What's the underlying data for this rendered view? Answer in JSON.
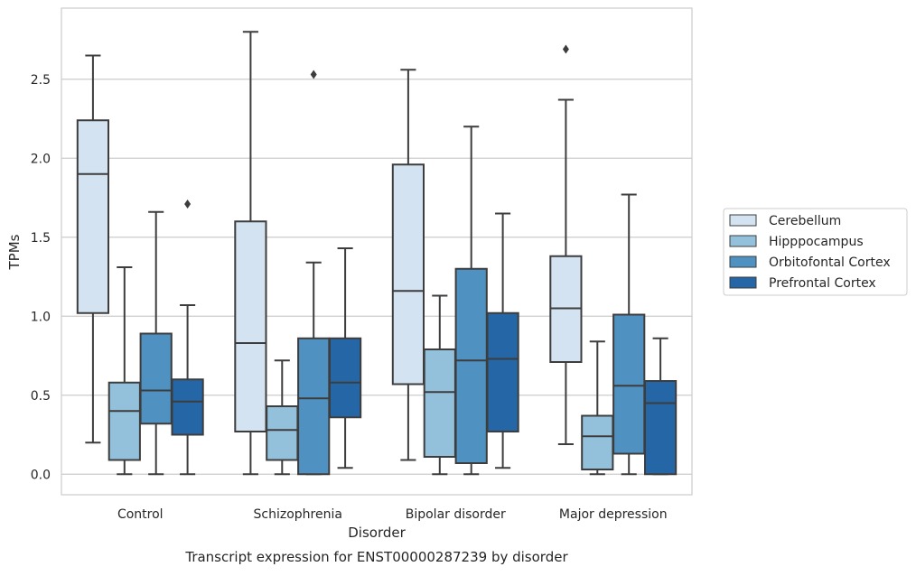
{
  "chart_data": {
    "type": "box",
    "caption": "Transcript expression for ENST00000287239 by disorder",
    "xlabel": "Disorder",
    "ylabel": "TPMs",
    "ylim": [
      -0.13,
      2.95
    ],
    "yticks": [
      0.0,
      0.5,
      1.0,
      1.5,
      2.0,
      2.5
    ],
    "ytick_labels": [
      "0.0",
      "0.5",
      "1.0",
      "1.5",
      "2.0",
      "2.5"
    ],
    "grid": "horizontal",
    "legend_position": "right",
    "categories": [
      "Control",
      "Schizophrenia",
      "Bipolar disorder",
      "Major depression"
    ],
    "series": [
      {
        "name": "Cerebellum",
        "color": "#d3e3f2",
        "boxes": [
          {
            "whisker_low": 0.2,
            "q1": 1.02,
            "median": 1.9,
            "q3": 2.24,
            "whisker_high": 2.65,
            "outliers": []
          },
          {
            "whisker_low": 0.0,
            "q1": 0.27,
            "median": 0.83,
            "q3": 1.6,
            "whisker_high": 2.8,
            "outliers": []
          },
          {
            "whisker_low": 0.09,
            "q1": 0.57,
            "median": 1.16,
            "q3": 1.96,
            "whisker_high": 2.56,
            "outliers": []
          },
          {
            "whisker_low": 0.19,
            "q1": 0.71,
            "median": 1.05,
            "q3": 1.38,
            "whisker_high": 2.37,
            "outliers": [
              2.69
            ]
          }
        ]
      },
      {
        "name": "Hipppocampus",
        "color": "#93c1dc",
        "boxes": [
          {
            "whisker_low": 0.0,
            "q1": 0.09,
            "median": 0.4,
            "q3": 0.58,
            "whisker_high": 1.31,
            "outliers": []
          },
          {
            "whisker_low": 0.0,
            "q1": 0.09,
            "median": 0.28,
            "q3": 0.43,
            "whisker_high": 0.72,
            "outliers": []
          },
          {
            "whisker_low": 0.0,
            "q1": 0.11,
            "median": 0.52,
            "q3": 0.79,
            "whisker_high": 1.13,
            "outliers": []
          },
          {
            "whisker_low": 0.0,
            "q1": 0.03,
            "median": 0.24,
            "q3": 0.37,
            "whisker_high": 0.84,
            "outliers": []
          }
        ]
      },
      {
        "name": "Orbitofontal Cortex",
        "color": "#4f91c1",
        "boxes": [
          {
            "whisker_low": 0.0,
            "q1": 0.32,
            "median": 0.53,
            "q3": 0.89,
            "whisker_high": 1.66,
            "outliers": []
          },
          {
            "whisker_low": 0.0,
            "q1": 0.0,
            "median": 0.48,
            "q3": 0.86,
            "whisker_high": 1.34,
            "outliers": [
              2.53
            ]
          },
          {
            "whisker_low": 0.0,
            "q1": 0.07,
            "median": 0.72,
            "q3": 1.3,
            "whisker_high": 2.2,
            "outliers": []
          },
          {
            "whisker_low": 0.0,
            "q1": 0.13,
            "median": 0.56,
            "q3": 1.01,
            "whisker_high": 1.77,
            "outliers": []
          }
        ]
      },
      {
        "name": "Prefrontal Cortex",
        "color": "#2466a6",
        "boxes": [
          {
            "whisker_low": 0.0,
            "q1": 0.25,
            "median": 0.46,
            "q3": 0.6,
            "whisker_high": 1.07,
            "outliers": [
              1.71
            ]
          },
          {
            "whisker_low": 0.04,
            "q1": 0.36,
            "median": 0.58,
            "q3": 0.86,
            "whisker_high": 1.43,
            "outliers": []
          },
          {
            "whisker_low": 0.04,
            "q1": 0.27,
            "median": 0.73,
            "q3": 1.02,
            "whisker_high": 1.65,
            "outliers": []
          },
          {
            "whisker_low": 0.0,
            "q1": 0.0,
            "median": 0.45,
            "q3": 0.59,
            "whisker_high": 0.86,
            "outliers": []
          }
        ]
      }
    ]
  }
}
